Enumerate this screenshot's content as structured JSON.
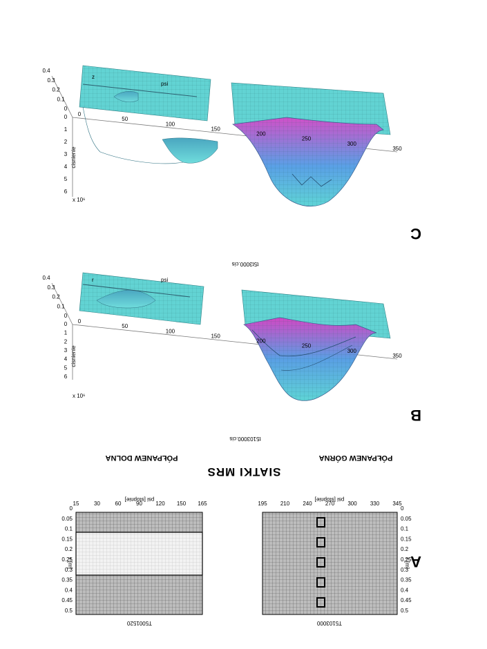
{
  "figure": {
    "title": "SIATKI MRS",
    "subtitles": {
      "upper": "PÓŁPANEW GÓRNA",
      "lower": "PÓŁPANEW DOLNA"
    },
    "panel_letters": {
      "a": "A",
      "b": "B",
      "c": "C"
    }
  },
  "panel_a": {
    "left_grid": {
      "caption": "T5001520",
      "xlabel": "psi [stopnie]",
      "ylabel": "r [m]",
      "xticks": [
        "15",
        "30",
        "60",
        "90",
        "120",
        "150",
        "165"
      ],
      "yticks": [
        "0",
        "0.05",
        "0.1",
        "0.15",
        "0.2",
        "0.25",
        "0.3",
        "0.35",
        "0.4",
        "0.45",
        "0.5"
      ]
    },
    "right_grid": {
      "caption": "T5103000",
      "xlabel": "psi [stopnie]",
      "ylabel": "r [m]",
      "xticks": [
        "195",
        "210",
        "240",
        "270",
        "300",
        "330",
        "345"
      ],
      "yticks": [
        "0",
        "0.05",
        "0.1",
        "0.15",
        "0.2",
        "0.25",
        "0.3",
        "0.35",
        "0.4",
        "0.45",
        "0.5"
      ]
    }
  },
  "panel_b": {
    "caption": "t5103000.cis",
    "zlabel": "cisnienie",
    "scale": "x 10⁶",
    "zticks": [
      "0",
      "1",
      "2",
      "3",
      "4",
      "5",
      "6"
    ],
    "psi_label": "psi",
    "psi_ticks": [
      "0",
      "50",
      "100",
      "150",
      "200",
      "250",
      "300",
      "350"
    ],
    "r_label": "r",
    "r_ticks": [
      "0",
      "0.1",
      "0.2",
      "0.3",
      "0.4"
    ]
  },
  "panel_c": {
    "caption": "t5t3000.cis",
    "zlabel": "cisnienie",
    "scale": "x 10⁶",
    "zticks": [
      "0",
      "1",
      "2",
      "3",
      "4",
      "5",
      "6"
    ],
    "psi_label": "psi",
    "psi_ticks": [
      "0",
      "50",
      "100",
      "150",
      "200",
      "250",
      "300",
      "350"
    ],
    "r_label": "z",
    "r_ticks": [
      "0",
      "0.1",
      "0.2",
      "0.3",
      "0.4"
    ]
  },
  "colors": {
    "surface_low": "#5fd4d6",
    "surface_mid": "#5aa0e6",
    "surface_high": "#d050c8",
    "grid": "#555555"
  }
}
